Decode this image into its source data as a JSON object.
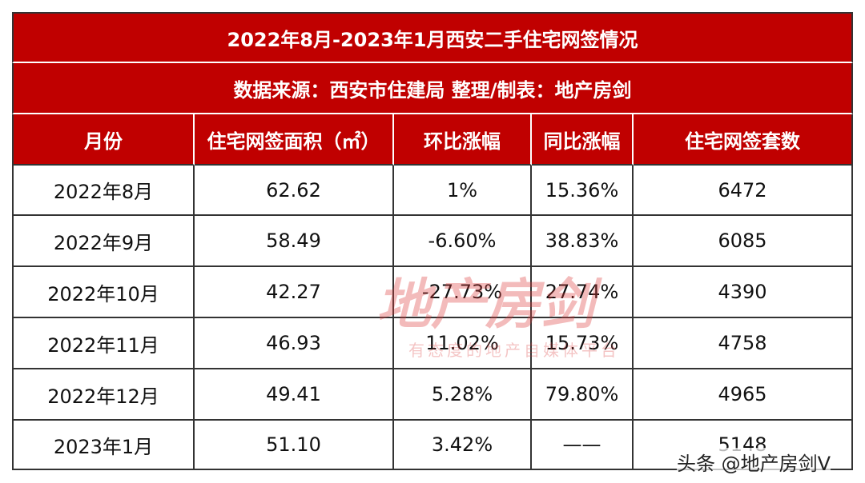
{
  "table": {
    "title": "2022年8月-2023年1月西安二手住宅网签情况",
    "subtitle": "数据来源：西安市住建局 整理/制表：地产房剑",
    "columns": [
      "月份",
      "住宅网签面积（㎡）",
      "环比涨幅",
      "同比涨幅",
      "住宅网签套数"
    ],
    "rows": [
      [
        "2022年8月",
        "62.62",
        "1%",
        "15.36%",
        "6472"
      ],
      [
        "2022年9月",
        "58.49",
        "-6.60%",
        "38.83%",
        "6085"
      ],
      [
        "2022年10月",
        "42.27",
        "-27.73%",
        "27.74%",
        "4390"
      ],
      [
        "2022年11月",
        "46.93",
        "11.02%",
        "15.73%",
        "4758"
      ],
      [
        "2022年12月",
        "49.41",
        "5.28%",
        "79.80%",
        "4965"
      ],
      [
        "2023年1月",
        "51.10",
        "3.42%",
        "——",
        "5148"
      ]
    ]
  },
  "watermark": {
    "logo": "地产房剑",
    "slogan": "有态度的地产自媒体平台",
    "credit": "头条 @地产房剑V"
  }
}
